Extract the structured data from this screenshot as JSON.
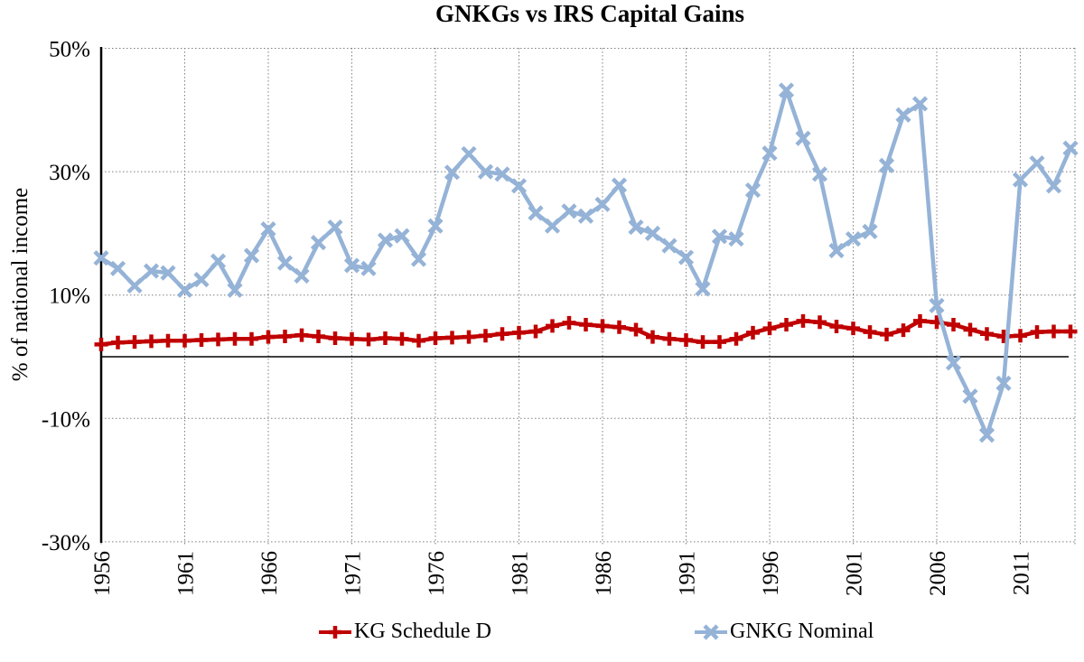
{
  "title": "GNKGs vs IRS Capital Gains",
  "chart_data": {
    "type": "line",
    "title": "GNKGs vs IRS Capital Gains",
    "xlabel": "",
    "ylabel": "% of national income",
    "ylim": [
      -30,
      50
    ],
    "grid": true,
    "zero_line": true,
    "legend_position": "bottom-center",
    "xtick_rotation": 90,
    "xticks": [
      1956,
      1961,
      1966,
      1971,
      1976,
      1981,
      1986,
      1991,
      1996,
      2001,
      2006,
      2011
    ],
    "yticks": [
      50,
      30,
      10,
      -10,
      -30
    ],
    "ytick_labels": [
      "50%",
      "30%",
      "10%",
      "-10%",
      "-30%"
    ],
    "x": [
      1956,
      1957,
      1958,
      1959,
      1960,
      1961,
      1962,
      1963,
      1964,
      1965,
      1966,
      1967,
      1968,
      1969,
      1970,
      1971,
      1972,
      1973,
      1974,
      1975,
      1976,
      1977,
      1978,
      1979,
      1980,
      1981,
      1982,
      1983,
      1984,
      1985,
      1986,
      1987,
      1988,
      1989,
      1990,
      1991,
      1992,
      1993,
      1994,
      1995,
      1996,
      1997,
      1998,
      1999,
      2000,
      2001,
      2002,
      2003,
      2004,
      2005,
      2006,
      2007,
      2008,
      2009,
      2010,
      2011,
      2012,
      2013,
      2014
    ],
    "series": [
      {
        "name": "KG Schedule D",
        "color": "#C00000",
        "marker": "plus",
        "values": [
          2.0,
          2.3,
          2.4,
          2.5,
          2.6,
          2.6,
          2.7,
          2.8,
          2.9,
          2.9,
          3.2,
          3.3,
          3.5,
          3.3,
          3.0,
          2.9,
          2.8,
          3.0,
          2.9,
          2.6,
          3.0,
          3.1,
          3.2,
          3.4,
          3.7,
          3.9,
          4.1,
          5.0,
          5.5,
          5.2,
          5.0,
          4.8,
          4.4,
          3.2,
          2.9,
          2.7,
          2.4,
          2.4,
          2.9,
          3.9,
          4.6,
          5.2,
          5.8,
          5.6,
          4.9,
          4.6,
          4.0,
          3.6,
          4.3,
          5.8,
          5.6,
          5.2,
          4.4,
          3.7,
          3.3,
          3.4,
          4.0,
          4.1,
          4.1
        ]
      },
      {
        "name": "GNKG Nominal",
        "color": "#95B3D7",
        "marker": "x",
        "values": [
          16.0,
          14.3,
          11.5,
          13.9,
          13.6,
          10.8,
          12.5,
          15.5,
          10.8,
          16.4,
          20.7,
          15.2,
          13.1,
          18.5,
          21.0,
          14.8,
          14.3,
          18.9,
          19.6,
          15.8,
          21.2,
          29.9,
          32.9,
          30.0,
          29.6,
          27.7,
          23.3,
          21.2,
          23.6,
          22.8,
          24.7,
          27.8,
          21.0,
          20.0,
          18.0,
          16.1,
          11.0,
          19.5,
          19.1,
          27.0,
          33.0,
          43.2,
          35.4,
          29.6,
          17.2,
          19.1,
          20.3,
          31.0,
          39.2,
          41.0,
          8.3,
          -1.0,
          -6.4,
          -12.7,
          -4.3,
          28.7,
          31.4,
          27.7,
          33.8
        ]
      }
    ]
  },
  "legend": {
    "items": [
      {
        "label": "KG Schedule D"
      },
      {
        "label": "GNKG Nominal"
      }
    ]
  }
}
